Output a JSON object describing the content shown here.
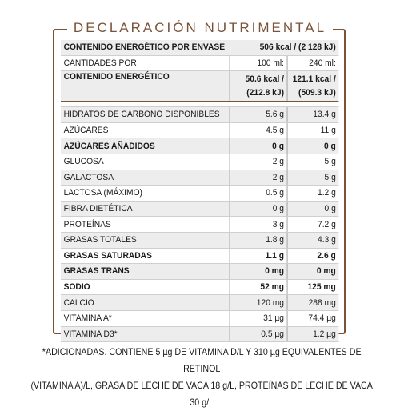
{
  "title": "DECLARACIÓN NUTRIMENTAL",
  "envase": {
    "label": "CONTENIDO ENERGÉTICO POR ENVASE",
    "value": "506 kcal / (2 128 kJ)"
  },
  "cantidades": {
    "label": "CANTIDADES POR",
    "col1": "100 ml:",
    "col2": "240 ml:"
  },
  "energetico": {
    "label": "CONTENIDO ENERGÉTICO",
    "col1_a": "50.6 kcal /",
    "col1_b": "(212.8 kJ)",
    "col2_a": "121.1 kcal /",
    "col2_b": "(509.3 kJ)"
  },
  "rows": [
    {
      "label": "HIDRATOS DE CARBONO DISPONIBLES",
      "v1": "5.6 g",
      "v2": "13.4 g",
      "bold": false,
      "shade": true
    },
    {
      "label": "AZÚCARES",
      "v1": "4.5 g",
      "v2": "11 g",
      "bold": false,
      "shade": false
    },
    {
      "label": "AZÚCARES AÑADIDOS",
      "v1": "0 g",
      "v2": "0 g",
      "bold": true,
      "shade": true
    },
    {
      "label": "GLUCOSA",
      "v1": "2 g",
      "v2": "5 g",
      "bold": false,
      "shade": false
    },
    {
      "label": "GALACTOSA",
      "v1": "2 g",
      "v2": "5 g",
      "bold": false,
      "shade": true
    },
    {
      "label": "LACTOSA (MÁXIMO)",
      "v1": "0.5 g",
      "v2": "1.2 g",
      "bold": false,
      "shade": false
    },
    {
      "label": "FIBRA DIETÉTICA",
      "v1": "0 g",
      "v2": "0 g",
      "bold": false,
      "shade": true
    },
    {
      "label": "PROTEÍNAS",
      "v1": "3 g",
      "v2": "7.2 g",
      "bold": false,
      "shade": false
    },
    {
      "label": "GRASAS TOTALES",
      "v1": "1.8 g",
      "v2": "4.3 g",
      "bold": false,
      "shade": true
    },
    {
      "label": "GRASAS SATURADAS",
      "v1": "1.1 g",
      "v2": "2.6 g",
      "bold": true,
      "shade": false
    },
    {
      "label": "GRASAS TRANS",
      "v1": "0 mg",
      "v2": "0 mg",
      "bold": true,
      "shade": true
    },
    {
      "label": "SODIO",
      "v1": "52 mg",
      "v2": "125 mg",
      "bold": true,
      "shade": false
    },
    {
      "label": "CALCIO",
      "v1": "120 mg",
      "v2": "288 mg",
      "bold": false,
      "shade": true
    },
    {
      "label": "VITAMINA A*",
      "v1": "31 µg",
      "v2": "74.4 µg",
      "bold": false,
      "shade": false
    },
    {
      "label": "VITAMINA D3*",
      "v1": "0.5 µg",
      "v2": "1.2 µg",
      "bold": false,
      "shade": true
    }
  ],
  "footnote_line1": "*ADICIONADAS. CONTIENE 5 µg DE VITAMINA D/L Y 310 µg EQUIVALENTES DE RETINOL",
  "footnote_line2": "(VITAMINA A)/L, GRASA DE LECHE DE VACA 18 g/L, PROTEÍNAS DE LECHE DE VACA 30 g/L",
  "colors": {
    "accent": "#7a5238",
    "shade": "#ededed"
  }
}
